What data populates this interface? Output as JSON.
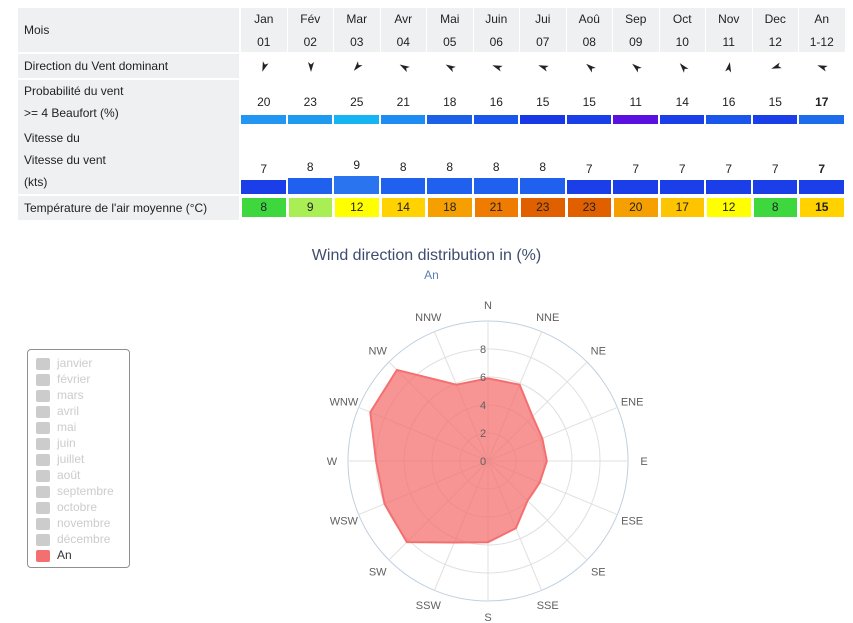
{
  "table": {
    "header": {
      "label": "Mois",
      "months": [
        "Jan",
        "Fév",
        "Mar",
        "Avr",
        "Mai",
        "Juin",
        "Jui",
        "Aoû",
        "Sep",
        "Oct",
        "Nov",
        "Dec",
        "An"
      ],
      "numbers": [
        "01",
        "02",
        "03",
        "04",
        "05",
        "06",
        "07",
        "08",
        "09",
        "10",
        "11",
        "12",
        "1-12"
      ]
    },
    "direction_row": {
      "label": "Direction du Vent dominant",
      "arrow_angles_deg": [
        200,
        180,
        220,
        300,
        300,
        290,
        290,
        310,
        310,
        320,
        10,
        250,
        290
      ]
    },
    "probability_row": {
      "label_line1": "Probabilité du vent",
      "label_line2": ">= 4 Beaufort (%)",
      "values": [
        "20",
        "23",
        "25",
        "21",
        "18",
        "16",
        "15",
        "15",
        "11",
        "14",
        "16",
        "15",
        "17"
      ],
      "bar_colors": [
        "#2196f3",
        "#1e9aef",
        "#16b4f2",
        "#1e8cf3",
        "#1c60e8",
        "#1a56ec",
        "#1838e6",
        "#1a3ee8",
        "#5a10e0",
        "#1a3ee8",
        "#1a56ec",
        "#1a3ee8",
        "#1c6cec"
      ]
    },
    "speed_row": {
      "label_line1": "Vitesse du",
      "label_line2": "Vitesse du vent",
      "label_line3": "(kts)",
      "values": [
        "7",
        "8",
        "9",
        "8",
        "8",
        "8",
        "8",
        "7",
        "7",
        "7",
        "7",
        "7",
        "7"
      ],
      "bar_levels": [
        7,
        8,
        9,
        8,
        8,
        8,
        8,
        7,
        7,
        7,
        7,
        7,
        7
      ],
      "bar_colors": [
        "#1a3ee8",
        "#2060ee",
        "#2a74f0",
        "#2060ee",
        "#2060ee",
        "#2060ee",
        "#2060ee",
        "#1a3ee8",
        "#1a3ee8",
        "#1a3ee8",
        "#1a3ee8",
        "#1a3ee8",
        "#1a3ee8"
      ]
    },
    "temperature_row": {
      "label": "Température de l'air moyenne (°C)",
      "values": [
        "8",
        "9",
        "12",
        "14",
        "18",
        "21",
        "23",
        "23",
        "20",
        "17",
        "12",
        "8",
        "15"
      ],
      "cell_colors": [
        "#3ed83e",
        "#aaee55",
        "#ffff00",
        "#ffd200",
        "#f5a000",
        "#ef7b00",
        "#e06000",
        "#e06000",
        "#f5a000",
        "#ffc400",
        "#ffff00",
        "#3ed83e",
        "#ffd200"
      ]
    }
  },
  "chart": {
    "title": "Wind direction distribution in (%)",
    "subtitle": "An"
  },
  "legend": {
    "items": [
      {
        "label": "janvier",
        "active": false
      },
      {
        "label": "février",
        "active": false
      },
      {
        "label": "mars",
        "active": false
      },
      {
        "label": "avril",
        "active": false
      },
      {
        "label": "mai",
        "active": false
      },
      {
        "label": "juin",
        "active": false
      },
      {
        "label": "juillet",
        "active": false
      },
      {
        "label": "août",
        "active": false
      },
      {
        "label": "septembre",
        "active": false
      },
      {
        "label": "octobre",
        "active": false
      },
      {
        "label": "novembre",
        "active": false
      },
      {
        "label": "décembre",
        "active": false
      },
      {
        "label": "An",
        "active": true
      }
    ],
    "inactive_color": "#cccccc",
    "active_color": "#f47070"
  },
  "chart_data": {
    "type": "radar",
    "title": "Wind direction distribution in (%)",
    "subtitle": "An",
    "categories": [
      "N",
      "NNE",
      "NE",
      "ENE",
      "E",
      "ESE",
      "SE",
      "SSE",
      "S",
      "SSW",
      "SW",
      "WSW",
      "W",
      "WNW",
      "NW",
      "NNW"
    ],
    "ylim": [
      0,
      10
    ],
    "ticks": [
      0,
      2,
      4,
      6,
      8
    ],
    "series": [
      {
        "name": "An",
        "color": "#f47070",
        "values": [
          5.9,
          5.9,
          4.5,
          4.2,
          4.2,
          4.0,
          4.0,
          5.2,
          5.8,
          6.3,
          8.2,
          8.0,
          8.0,
          9.1,
          9.2,
          5.9
        ]
      }
    ],
    "grid": true,
    "legend": "left"
  }
}
